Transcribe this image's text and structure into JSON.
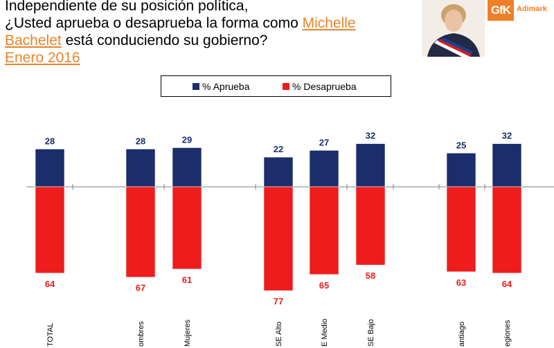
{
  "header": {
    "title_line1": "Independiente de su posición política,",
    "title_line2a": "¿Usted aprueba o desaprueba la forma como ",
    "title_name1": "Michelle",
    "title_name2": "Bachelet",
    "title_line3b": " está conduciendo su gobierno?",
    "title_date": "Enero 2016"
  },
  "logo": {
    "mark": "GfK",
    "brand": "Adimark"
  },
  "colors": {
    "approve": "#1b2d6b",
    "disapprove": "#ee1c1c",
    "highlight": "#e8842a",
    "brand": "#f07f2a"
  },
  "chart_data": {
    "type": "bar",
    "categories": [
      "TOTAL",
      "Hombres",
      "Mujeres",
      "GSE Alto",
      "GSE Medio",
      "GSE Bajo",
      "Santiago",
      "Regiones"
    ],
    "category_labels_visible": [
      "TOTAL",
      "ombres",
      "Mujeres",
      "SE Alto",
      "E Medio",
      "SE Bajo",
      "antiago",
      "egiones"
    ],
    "series": [
      {
        "name": "% Aprueba",
        "values": [
          28,
          28,
          29,
          22,
          27,
          32,
          25,
          32
        ],
        "color": "#1b2d6b",
        "direction": "up"
      },
      {
        "name": "% Desaprueba",
        "values": [
          64,
          67,
          61,
          77,
          65,
          58,
          63,
          64
        ],
        "color": "#ee1c1c",
        "direction": "down"
      }
    ],
    "legend": "top-center",
    "grid": false
  }
}
